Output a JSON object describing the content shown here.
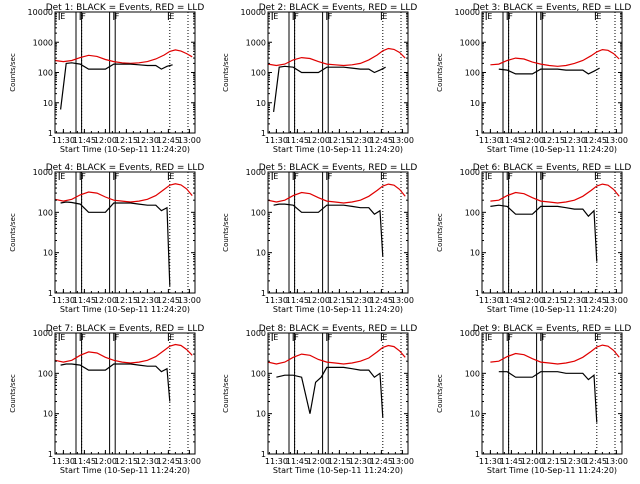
{
  "start_label": "Start Time (10-Sep-11 11:24:20)",
  "y_label": "Counts/sec",
  "x_ticks": [
    "11:30",
    "11:45",
    "12:00",
    "12:15",
    "12:30",
    "12:45",
    "13:00"
  ],
  "y_ticks_first": [
    "1",
    "10",
    "100",
    "1000",
    "10000"
  ],
  "y_ticks_rest": [
    "1",
    "10",
    "100",
    "1000"
  ],
  "markers": [
    "E",
    "F",
    "F",
    "E"
  ],
  "colors": {
    "events": "#000000",
    "lld": "#e00000"
  },
  "chart_data": [
    {
      "type": "line",
      "title": "Det 1: BLACK = Events, RED = LLD",
      "ylim": [
        1,
        10000
      ],
      "yscale": "log",
      "xlim": [
        "11:24",
        "13:04"
      ],
      "series": [
        {
          "name": "LLD",
          "x": [
            "11:24",
            "11:30",
            "11:36",
            "11:42",
            "11:48",
            "11:54",
            "12:00",
            "12:06",
            "12:12",
            "12:18",
            "12:24",
            "12:30",
            "12:36",
            "12:42",
            "12:46",
            "12:50",
            "12:54",
            "12:58",
            "13:02"
          ],
          "values": [
            250,
            230,
            250,
            310,
            370,
            340,
            270,
            230,
            210,
            200,
            210,
            230,
            280,
            380,
            500,
            560,
            510,
            420,
            330
          ]
        },
        {
          "name": "Events",
          "x": [
            "11:28",
            "11:32",
            "11:36",
            "11:42",
            "11:48",
            "11:54",
            "12:00",
            "12:06",
            "12:12",
            "12:18",
            "12:24",
            "12:30",
            "12:36",
            "12:40",
            "12:44",
            "12:48"
          ],
          "values": [
            6,
            200,
            210,
            190,
            130,
            130,
            130,
            190,
            190,
            190,
            180,
            170,
            170,
            130,
            160,
            180
          ]
        }
      ]
    },
    {
      "type": "line",
      "title": "Det 2: BLACK = Events, RED = LLD",
      "ylim": [
        1,
        10000
      ],
      "yscale": "log",
      "xlim": [
        "11:24",
        "13:04"
      ],
      "series": [
        {
          "name": "LLD",
          "x": [
            "11:24",
            "11:30",
            "11:36",
            "11:42",
            "11:48",
            "11:54",
            "12:00",
            "12:06",
            "12:12",
            "12:18",
            "12:24",
            "12:30",
            "12:36",
            "12:42",
            "12:46",
            "12:50",
            "12:54",
            "12:58",
            "13:02"
          ],
          "values": [
            190,
            170,
            190,
            260,
            310,
            290,
            230,
            190,
            180,
            170,
            180,
            200,
            260,
            380,
            520,
            620,
            580,
            460,
            300
          ]
        },
        {
          "name": "Events",
          "x": [
            "11:28",
            "11:32",
            "11:36",
            "11:42",
            "11:48",
            "11:54",
            "12:00",
            "12:06",
            "12:12",
            "12:18",
            "12:24",
            "12:30",
            "12:36",
            "12:40",
            "12:44",
            "12:48"
          ],
          "values": [
            5,
            150,
            160,
            150,
            100,
            100,
            100,
            150,
            150,
            150,
            140,
            130,
            130,
            100,
            120,
            150
          ]
        }
      ]
    },
    {
      "type": "line",
      "title": "Det 3: BLACK = Events, RED = LLD",
      "ylim": [
        1,
        10000
      ],
      "yscale": "log",
      "xlim": [
        "11:24",
        "13:04"
      ],
      "series": [
        {
          "name": "LLD",
          "x": [
            "11:30",
            "11:36",
            "11:42",
            "11:48",
            "11:54",
            "12:00",
            "12:06",
            "12:12",
            "12:18",
            "12:24",
            "12:30",
            "12:36",
            "12:42",
            "12:46",
            "12:50",
            "12:54",
            "12:58",
            "13:02"
          ],
          "values": [
            180,
            190,
            250,
            300,
            280,
            220,
            190,
            170,
            160,
            170,
            200,
            250,
            360,
            480,
            570,
            540,
            420,
            280
          ]
        },
        {
          "name": "Events",
          "x": [
            "11:36",
            "11:42",
            "11:48",
            "11:54",
            "12:00",
            "12:06",
            "12:12",
            "12:18",
            "12:24",
            "12:30",
            "12:36",
            "12:40",
            "12:44",
            "12:48"
          ],
          "values": [
            130,
            120,
            90,
            90,
            90,
            130,
            130,
            130,
            120,
            120,
            120,
            90,
            110,
            140
          ]
        }
      ]
    },
    {
      "type": "line",
      "title": "Det 4: BLACK = Events, RED = LLD",
      "ylim": [
        1,
        1000
      ],
      "yscale": "log",
      "xlim": [
        "11:24",
        "13:04"
      ],
      "series": [
        {
          "name": "LLD",
          "x": [
            "11:24",
            "11:30",
            "11:36",
            "11:42",
            "11:48",
            "11:54",
            "12:00",
            "12:06",
            "12:12",
            "12:18",
            "12:24",
            "12:30",
            "12:36",
            "12:42",
            "12:46",
            "12:50",
            "12:54",
            "12:58",
            "13:02"
          ],
          "values": [
            210,
            190,
            210,
            270,
            320,
            300,
            240,
            200,
            190,
            180,
            190,
            210,
            260,
            370,
            470,
            510,
            480,
            380,
            260
          ]
        },
        {
          "name": "Events",
          "x": [
            "11:28",
            "11:32",
            "11:36",
            "11:42",
            "11:48",
            "11:54",
            "12:00",
            "12:06",
            "12:12",
            "12:18",
            "12:24",
            "12:30",
            "12:36",
            "12:40",
            "12:44",
            "12:46"
          ],
          "values": [
            170,
            180,
            175,
            160,
            100,
            100,
            100,
            170,
            170,
            170,
            160,
            150,
            150,
            110,
            130,
            1.5
          ]
        }
      ]
    },
    {
      "type": "line",
      "title": "Det 5: BLACK = Events, RED = LLD",
      "ylim": [
        1,
        1000
      ],
      "yscale": "log",
      "xlim": [
        "11:24",
        "13:04"
      ],
      "series": [
        {
          "name": "LLD",
          "x": [
            "11:24",
            "11:30",
            "11:36",
            "11:42",
            "11:48",
            "11:54",
            "12:00",
            "12:06",
            "12:12",
            "12:18",
            "12:24",
            "12:30",
            "12:36",
            "12:42",
            "12:46",
            "12:50",
            "12:54",
            "12:58",
            "13:02"
          ],
          "values": [
            200,
            180,
            200,
            260,
            310,
            290,
            230,
            190,
            180,
            170,
            180,
            200,
            250,
            350,
            450,
            500,
            470,
            370,
            250
          ]
        },
        {
          "name": "Events",
          "x": [
            "11:28",
            "11:32",
            "11:36",
            "11:42",
            "11:48",
            "11:54",
            "12:00",
            "12:06",
            "12:12",
            "12:18",
            "12:24",
            "12:30",
            "12:36",
            "12:40",
            "12:44",
            "12:46"
          ],
          "values": [
            150,
            160,
            160,
            150,
            100,
            100,
            100,
            150,
            150,
            150,
            140,
            130,
            130,
            90,
            110,
            8
          ]
        }
      ]
    },
    {
      "type": "line",
      "title": "Det 6: BLACK = Events, RED = LLD",
      "ylim": [
        1,
        1000
      ],
      "yscale": "log",
      "xlim": [
        "11:24",
        "13:04"
      ],
      "series": [
        {
          "name": "LLD",
          "x": [
            "11:30",
            "11:36",
            "11:42",
            "11:48",
            "11:54",
            "12:00",
            "12:06",
            "12:12",
            "12:18",
            "12:24",
            "12:30",
            "12:36",
            "12:42",
            "12:46",
            "12:50",
            "12:54",
            "12:58",
            "13:02"
          ],
          "values": [
            190,
            200,
            260,
            310,
            290,
            230,
            190,
            180,
            170,
            180,
            200,
            250,
            350,
            450,
            500,
            470,
            370,
            250
          ]
        },
        {
          "name": "Events",
          "x": [
            "11:30",
            "11:36",
            "11:42",
            "11:48",
            "11:54",
            "12:00",
            "12:06",
            "12:12",
            "12:18",
            "12:24",
            "12:30",
            "12:36",
            "12:40",
            "12:44",
            "12:46"
          ],
          "values": [
            140,
            150,
            140,
            90,
            90,
            90,
            140,
            140,
            140,
            130,
            120,
            120,
            80,
            110,
            6
          ]
        }
      ]
    },
    {
      "type": "line",
      "title": "Det 7: BLACK = Events, RED = LLD",
      "ylim": [
        1,
        1000
      ],
      "yscale": "log",
      "xlim": [
        "11:24",
        "13:04"
      ],
      "series": [
        {
          "name": "LLD",
          "x": [
            "11:24",
            "11:30",
            "11:36",
            "11:42",
            "11:48",
            "11:54",
            "12:00",
            "12:06",
            "12:12",
            "12:18",
            "12:24",
            "12:30",
            "12:36",
            "12:42",
            "12:46",
            "12:50",
            "12:54",
            "12:58",
            "13:02"
          ],
          "values": [
            210,
            190,
            210,
            280,
            340,
            320,
            250,
            210,
            190,
            180,
            190,
            210,
            260,
            370,
            470,
            520,
            490,
            390,
            280
          ]
        },
        {
          "name": "Events",
          "x": [
            "11:28",
            "11:32",
            "11:36",
            "11:42",
            "11:48",
            "11:54",
            "12:00",
            "12:06",
            "12:12",
            "12:18",
            "12:24",
            "12:30",
            "12:36",
            "12:40",
            "12:44",
            "12:46"
          ],
          "values": [
            160,
            170,
            170,
            160,
            120,
            120,
            120,
            170,
            170,
            170,
            160,
            150,
            150,
            110,
            130,
            20
          ]
        }
      ]
    },
    {
      "type": "line",
      "title": "Det 8: BLACK = Events, RED = LLD",
      "ylim": [
        1,
        1000
      ],
      "yscale": "log",
      "xlim": [
        "11:24",
        "13:04"
      ],
      "series": [
        {
          "name": "LLD",
          "x": [
            "11:24",
            "11:30",
            "11:36",
            "11:42",
            "11:48",
            "11:54",
            "12:00",
            "12:06",
            "12:12",
            "12:18",
            "12:24",
            "12:30",
            "12:36",
            "12:42",
            "12:46",
            "12:50",
            "12:54",
            "12:58",
            "13:02"
          ],
          "values": [
            190,
            170,
            190,
            250,
            300,
            280,
            220,
            190,
            180,
            170,
            180,
            200,
            240,
            340,
            440,
            490,
            460,
            360,
            250
          ]
        },
        {
          "name": "Events",
          "x": [
            "11:30",
            "11:36",
            "11:42",
            "11:48",
            "11:54",
            "11:58",
            "12:02",
            "12:06",
            "12:12",
            "12:18",
            "12:24",
            "12:30",
            "12:36",
            "12:40",
            "12:44",
            "12:46"
          ],
          "values": [
            80,
            90,
            90,
            80,
            10,
            60,
            80,
            140,
            140,
            140,
            130,
            120,
            120,
            80,
            100,
            8
          ]
        }
      ]
    },
    {
      "type": "line",
      "title": "Det 9: BLACK = Events, RED = LLD",
      "ylim": [
        1,
        1000
      ],
      "yscale": "log",
      "xlim": [
        "11:24",
        "13:04"
      ],
      "series": [
        {
          "name": "LLD",
          "x": [
            "11:30",
            "11:36",
            "11:42",
            "11:48",
            "11:54",
            "12:00",
            "12:06",
            "12:12",
            "12:18",
            "12:24",
            "12:30",
            "12:36",
            "12:42",
            "12:46",
            "12:50",
            "12:54",
            "12:58",
            "13:02"
          ],
          "values": [
            190,
            200,
            260,
            310,
            290,
            230,
            190,
            180,
            170,
            180,
            200,
            250,
            350,
            450,
            500,
            470,
            370,
            250
          ]
        },
        {
          "name": "Events",
          "x": [
            "11:36",
            "11:42",
            "11:48",
            "11:54",
            "12:00",
            "12:06",
            "12:12",
            "12:18",
            "12:24",
            "12:30",
            "12:36",
            "12:40",
            "12:44",
            "12:46"
          ],
          "values": [
            110,
            110,
            80,
            80,
            80,
            110,
            110,
            110,
            100,
            100,
            100,
            70,
            90,
            6
          ]
        }
      ]
    }
  ]
}
